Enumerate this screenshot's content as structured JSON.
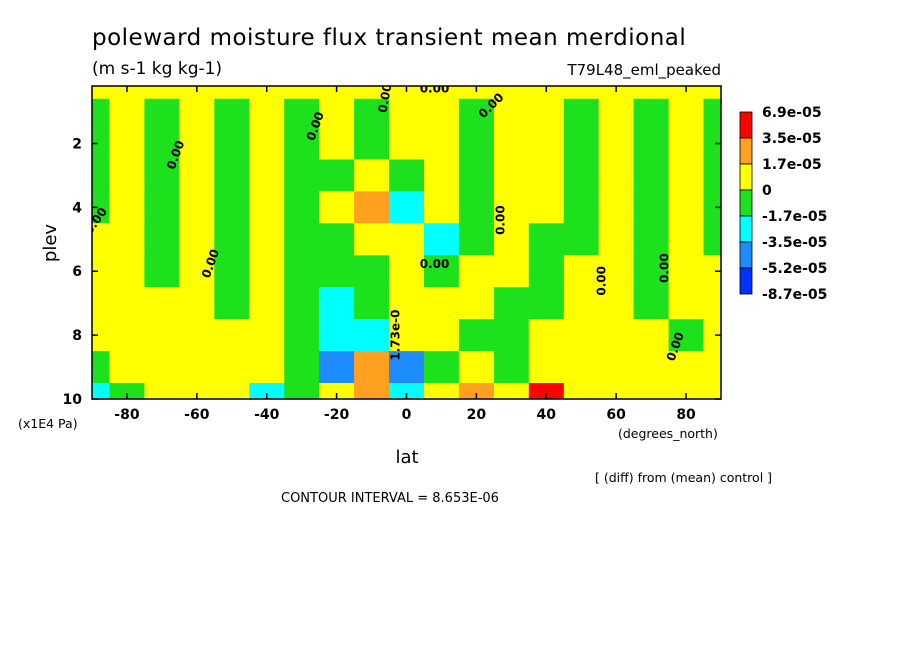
{
  "chart_data": {
    "type": "heatmap",
    "title": "poleward moisture flux transient mean merdional",
    "units": "(m s-1 kg kg-1)",
    "experiment": "T79L48_eml_peaked",
    "xlabel": "lat",
    "xunits": "(degrees_north)",
    "ylabel": "plev",
    "yunits": "(x1E4 Pa)",
    "xlim": [
      -90,
      90
    ],
    "ylim": [
      10,
      0.2
    ],
    "x_ticks": [
      -80,
      -60,
      -40,
      -20,
      0,
      20,
      40,
      60,
      80
    ],
    "y_ticks": [
      2,
      4,
      6,
      8,
      10
    ],
    "x_tick_labels": [
      "-80",
      "-60",
      "-40",
      "-20",
      "0",
      "20",
      "40",
      "60",
      "80"
    ],
    "y_tick_labels": [
      "2",
      "4",
      "6",
      "8",
      "10"
    ],
    "colorbar": {
      "labels": [
        "6.9e-05",
        "3.5e-05",
        "1.7e-05",
        "0",
        "-1.7e-05",
        "-3.5e-05",
        "-5.2e-05",
        "-8.7e-05"
      ],
      "colors": [
        "#ff0000",
        "#ffa01e",
        "#ffff00",
        "#1ee11e",
        "#00ffff",
        "#1e8cff",
        "#0032ff"
      ]
    },
    "contour_labels": [
      "0.00",
      "0.00",
      "0.00",
      "0.00",
      "0.00",
      "0.00",
      "0.00",
      "0.00",
      "0.00",
      "0.00",
      "0.00",
      "0.00",
      "1.73e-0"
    ],
    "note": "[ (diff) from (mean) control ]",
    "contour_interval": "CONTOUR INTERVAL = 8.653E-06",
    "field": {
      "lat": [
        -90,
        -80,
        -70,
        -60,
        -50,
        -40,
        -30,
        -20,
        -10,
        0,
        10,
        20,
        30,
        40,
        50,
        60,
        70,
        80,
        90
      ],
      "plev": [
        0.2,
        1,
        2,
        3,
        4,
        5,
        6,
        7,
        8,
        9,
        10
      ],
      "values_1e5": [
        [
          0.5,
          0.5,
          0.5,
          0.5,
          0.5,
          0.5,
          0.5,
          0.5,
          0.5,
          0.5,
          0.5,
          0.5,
          0.5,
          0.5,
          0.5,
          0.5,
          0.5,
          0.5,
          0.5
        ],
        [
          -0.5,
          0.5,
          -0.5,
          0.5,
          -0.5,
          0.5,
          -0.5,
          0.5,
          -0.5,
          0.5,
          0.5,
          -0.5,
          0.5,
          0.5,
          -0.5,
          0.5,
          -0.5,
          0.5,
          -0.5
        ],
        [
          -0.5,
          0.5,
          -0.5,
          0.5,
          -0.5,
          0.5,
          -0.5,
          0.5,
          -0.5,
          0.5,
          0.5,
          -0.5,
          0.5,
          0.5,
          -0.5,
          0.5,
          -0.5,
          0.5,
          -0.5
        ],
        [
          -0.5,
          0.5,
          -0.5,
          0.5,
          -0.5,
          0.5,
          -0.5,
          -0.5,
          0.5,
          -0.5,
          0.5,
          -0.5,
          0.5,
          0.5,
          -0.5,
          0.5,
          -0.5,
          0.5,
          -0.5
        ],
        [
          -0.5,
          0.5,
          -0.5,
          0.5,
          -0.5,
          0.5,
          -0.5,
          0.5,
          3.6,
          -2.0,
          0.5,
          -0.5,
          0.5,
          0.5,
          -0.5,
          0.5,
          -0.5,
          0.5,
          -0.5
        ],
        [
          0.5,
          0.5,
          -0.5,
          0.5,
          -0.5,
          0.5,
          -0.5,
          -0.5,
          0.5,
          2.0,
          -2.0,
          -0.5,
          0.5,
          -0.5,
          -0.5,
          0.5,
          -0.5,
          0.5,
          -0.5
        ],
        [
          0.5,
          0.5,
          -0.5,
          0.5,
          -0.5,
          0.5,
          -0.5,
          -0.5,
          -0.5,
          2.0,
          -0.5,
          0.5,
          0.5,
          -0.5,
          0.5,
          0.5,
          -0.5,
          0.5,
          0.5
        ],
        [
          0.5,
          0.5,
          0.5,
          0.5,
          -0.5,
          0.5,
          -0.5,
          -2.0,
          -0.5,
          2.0,
          0.5,
          0.5,
          -0.5,
          -0.5,
          0.5,
          0.5,
          -0.5,
          0.5,
          0.5
        ],
        [
          0.5,
          0.5,
          0.5,
          0.5,
          0.5,
          0.5,
          -0.5,
          -2.0,
          -2.0,
          2.0,
          2.0,
          -0.5,
          -0.5,
          0.5,
          0.5,
          0.5,
          0.5,
          -0.5,
          0.5
        ],
        [
          -0.5,
          0.5,
          0.5,
          0.5,
          0.5,
          0.5,
          -0.5,
          -4.0,
          3.6,
          -4.0,
          -0.5,
          0.5,
          -0.5,
          2.0,
          0.5,
          0.5,
          0.5,
          0.5,
          0.5
        ],
        [
          -2.0,
          -0.5,
          0.5,
          0.5,
          0.5,
          -2.0,
          -0.5,
          0.5,
          3.6,
          -2.0,
          2.0,
          3.6,
          0.5,
          7.0,
          0.5,
          0.5,
          0.5,
          0.5,
          0.5
        ]
      ]
    }
  }
}
